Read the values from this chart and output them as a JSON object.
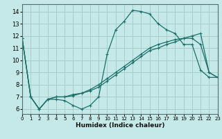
{
  "xlabel": "Humidex (Indice chaleur)",
  "bg_color": "#c5e8e8",
  "grid_color": "#a8cccc",
  "line_color": "#1a7068",
  "xlim": [
    0,
    23
  ],
  "ylim": [
    5.6,
    14.6
  ],
  "xticks": [
    0,
    1,
    2,
    3,
    4,
    5,
    6,
    7,
    8,
    9,
    10,
    11,
    12,
    13,
    14,
    15,
    16,
    17,
    18,
    19,
    20,
    21,
    22,
    23
  ],
  "yticks": [
    6,
    7,
    8,
    9,
    10,
    11,
    12,
    13,
    14
  ],
  "line1_x": [
    0,
    1,
    2,
    3,
    4,
    5,
    6,
    7,
    8,
    9,
    10,
    11,
    12,
    13,
    14,
    15,
    16,
    17,
    18,
    19,
    20,
    21,
    22,
    23
  ],
  "line1_y": [
    11.8,
    7.0,
    6.0,
    6.8,
    6.8,
    6.7,
    6.3,
    6.0,
    6.3,
    7.0,
    10.5,
    12.5,
    13.2,
    14.1,
    14.0,
    13.8,
    13.0,
    12.5,
    12.2,
    11.3,
    11.3,
    9.2,
    8.6,
    8.6
  ],
  "line2_x": [
    0,
    1,
    2,
    3,
    4,
    5,
    6,
    7,
    8,
    9,
    10,
    11,
    12,
    13,
    14,
    15,
    16,
    17,
    18,
    19,
    20,
    21,
    22,
    23
  ],
  "line2_y": [
    11.8,
    7.0,
    6.0,
    6.8,
    7.0,
    7.0,
    7.2,
    7.3,
    7.6,
    8.0,
    8.5,
    9.0,
    9.5,
    10.0,
    10.5,
    11.0,
    11.3,
    11.5,
    11.7,
    11.8,
    11.8,
    11.3,
    9.0,
    8.6
  ],
  "line3_x": [
    0,
    1,
    2,
    3,
    4,
    5,
    6,
    7,
    8,
    9,
    10,
    11,
    12,
    13,
    14,
    15,
    16,
    17,
    18,
    19,
    20,
    21,
    22,
    23
  ],
  "line3_y": [
    11.8,
    7.0,
    6.0,
    6.8,
    7.0,
    7.0,
    7.1,
    7.3,
    7.5,
    7.8,
    8.3,
    8.8,
    9.3,
    9.8,
    10.3,
    10.8,
    11.0,
    11.3,
    11.5,
    11.8,
    12.0,
    12.2,
    9.0,
    8.6
  ]
}
